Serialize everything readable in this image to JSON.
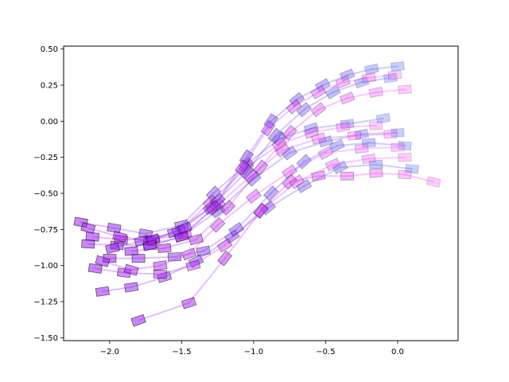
{
  "chart_data": {
    "type": "line",
    "title": "",
    "xlabel": "",
    "ylabel": "",
    "xlim": [
      -2.32,
      0.42
    ],
    "ylim": [
      -1.52,
      0.52
    ],
    "grid": false,
    "legend": "none",
    "marker": "rotated-rectangle",
    "line_alpha": 0.3,
    "colors": {
      "path_start": "#a020f0",
      "path_end_blue": "#4a63ff",
      "path_end_pink": "#ff55ff",
      "marker_edge": "#000000"
    },
    "xticks": [
      {
        "value": -2.0,
        "label": "−2.0"
      },
      {
        "value": -1.5,
        "label": "−1.5"
      },
      {
        "value": -1.0,
        "label": "−1.0"
      },
      {
        "value": -0.5,
        "label": "−0.5"
      },
      {
        "value": 0.0,
        "label": "0.0"
      }
    ],
    "yticks": [
      {
        "value": 0.5,
        "label": "0.50"
      },
      {
        "value": 0.25,
        "label": "0.25"
      },
      {
        "value": 0.0,
        "label": "0.00"
      },
      {
        "value": -0.25,
        "label": "−0.25"
      },
      {
        "value": -0.5,
        "label": "−0.50"
      },
      {
        "value": -0.75,
        "label": "−0.75"
      },
      {
        "value": -1.0,
        "label": "−1.00"
      },
      {
        "value": -1.25,
        "label": "−1.25"
      },
      {
        "value": -1.5,
        "label": "−1.50"
      }
    ],
    "series": [
      {
        "end": "pink",
        "x": [
          -1.8,
          -1.45,
          -1.2,
          -0.95,
          -0.75,
          -0.55,
          -0.35,
          -0.15,
          0.05,
          0.25
        ],
        "y": [
          -1.38,
          -1.26,
          -0.95,
          -0.62,
          -0.42,
          -0.38,
          -0.38,
          -0.36,
          -0.37,
          -0.42
        ]
      },
      {
        "end": "blue",
        "x": [
          -2.05,
          -1.85,
          -1.62,
          -1.4,
          -1.15,
          -0.9,
          -0.65,
          -0.4,
          -0.15,
          0.1
        ],
        "y": [
          -1.18,
          -1.15,
          -1.08,
          -0.97,
          -0.8,
          -0.6,
          -0.45,
          -0.32,
          -0.3,
          -0.33
        ]
      },
      {
        "end": "pink",
        "x": [
          -2.1,
          -1.9,
          -1.65,
          -1.42,
          -1.2,
          -0.95,
          -0.7,
          -0.45,
          -0.2,
          0.05
        ],
        "y": [
          -1.02,
          -1.05,
          -1.06,
          -1.0,
          -0.86,
          -0.62,
          -0.42,
          -0.3,
          -0.26,
          -0.25
        ]
      },
      {
        "end": "blue",
        "x": [
          -2.0,
          -1.8,
          -1.55,
          -1.35,
          -1.12,
          -0.88,
          -0.65,
          -0.42,
          -0.2,
          0.05
        ],
        "y": [
          -0.95,
          -0.95,
          -0.94,
          -0.9,
          -0.75,
          -0.5,
          -0.28,
          -0.17,
          -0.15,
          -0.17
        ]
      },
      {
        "end": "pink",
        "x": [
          -2.05,
          -1.85,
          -1.65,
          -1.45,
          -1.25,
          -1.0,
          -0.75,
          -0.5,
          -0.25,
          0.0
        ],
        "y": [
          -0.97,
          -1.03,
          -1.0,
          -0.92,
          -0.72,
          -0.52,
          -0.35,
          -0.22,
          -0.19,
          -0.18
        ]
      },
      {
        "end": "blue",
        "x": [
          -2.15,
          -1.95,
          -1.72,
          -1.5,
          -1.25,
          -1.0,
          -0.75,
          -0.5,
          -0.25,
          0.0
        ],
        "y": [
          -0.85,
          -0.86,
          -0.86,
          -0.8,
          -0.62,
          -0.4,
          -0.22,
          -0.14,
          -0.09,
          -0.08
        ]
      },
      {
        "end": "pink",
        "x": [
          -2.12,
          -1.92,
          -1.7,
          -1.48,
          -1.25,
          -1.02,
          -0.8,
          -0.55,
          -0.3,
          -0.05
        ],
        "y": [
          -0.8,
          -0.82,
          -0.82,
          -0.78,
          -0.58,
          -0.38,
          -0.2,
          -0.12,
          -0.1,
          -0.09
        ]
      },
      {
        "end": "blue",
        "x": [
          -2.2,
          -1.97,
          -1.75,
          -1.5,
          -1.28,
          -1.05,
          -0.82,
          -0.6,
          -0.35,
          -0.1
        ],
        "y": [
          -0.7,
          -0.74,
          -0.78,
          -0.72,
          -0.5,
          -0.3,
          -0.12,
          -0.05,
          -0.02,
          0.02
        ]
      },
      {
        "end": "pink",
        "x": [
          -2.15,
          -1.93,
          -1.72,
          -1.52,
          -1.3,
          -1.05,
          -0.82,
          -0.6,
          -0.38,
          -0.15
        ],
        "y": [
          -0.74,
          -0.8,
          -0.83,
          -0.76,
          -0.56,
          -0.32,
          -0.16,
          -0.08,
          -0.04,
          -0.03
        ]
      },
      {
        "end": "blue",
        "x": [
          -1.98,
          -1.78,
          -1.55,
          -1.3,
          -1.05,
          -0.85,
          -0.65,
          -0.45,
          -0.25,
          -0.05
        ],
        "y": [
          -0.88,
          -0.83,
          -0.77,
          -0.6,
          -0.35,
          -0.1,
          0.08,
          0.2,
          0.27,
          0.3
        ]
      },
      {
        "end": "pink",
        "x": [
          -1.85,
          -1.62,
          -1.4,
          -1.18,
          -0.95,
          -0.75,
          -0.55,
          -0.35,
          -0.15,
          0.05
        ],
        "y": [
          -0.9,
          -0.88,
          -0.82,
          -0.6,
          -0.32,
          -0.08,
          0.08,
          0.16,
          0.2,
          0.22
        ]
      },
      {
        "end": "blue",
        "x": [
          -1.7,
          -1.48,
          -1.25,
          -1.05,
          -0.88,
          -0.7,
          -0.52,
          -0.35,
          -0.18,
          0.0
        ],
        "y": [
          -0.82,
          -0.74,
          -0.55,
          -0.25,
          0.0,
          0.15,
          0.25,
          0.32,
          0.36,
          0.38
        ]
      },
      {
        "end": "pink",
        "x": [
          -1.72,
          -1.5,
          -1.28,
          -1.08,
          -0.9,
          -0.72,
          -0.55,
          -0.38,
          -0.2,
          -0.02
        ],
        "y": [
          -0.86,
          -0.8,
          -0.6,
          -0.32,
          -0.05,
          0.1,
          0.2,
          0.27,
          0.3,
          0.32
        ]
      }
    ]
  }
}
